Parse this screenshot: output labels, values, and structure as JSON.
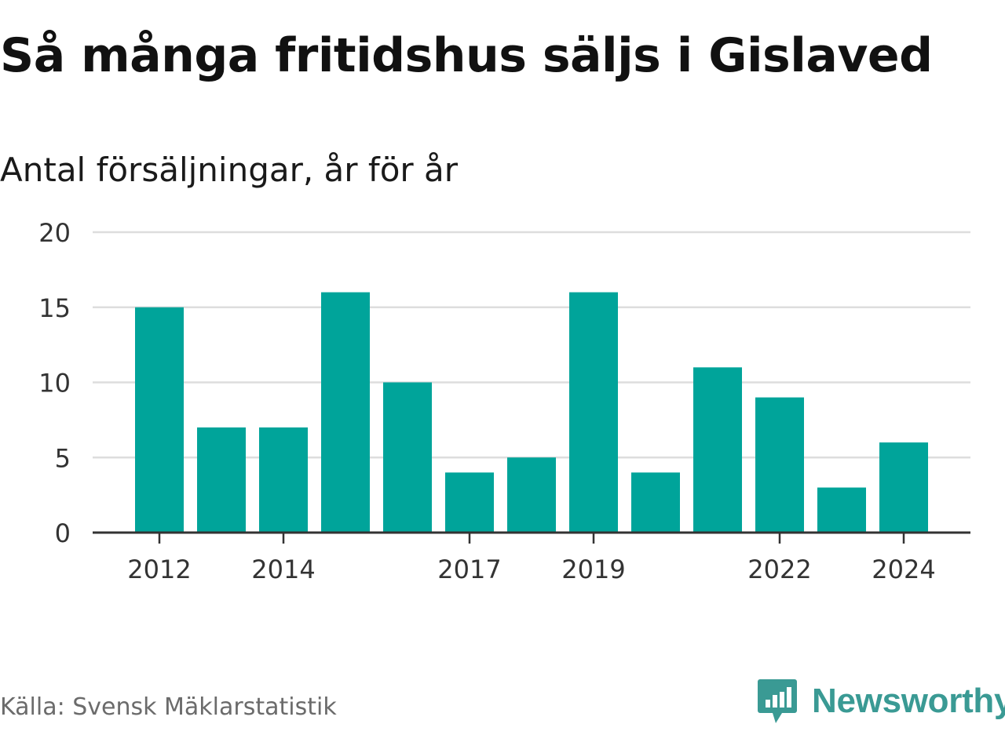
{
  "header": {
    "title": "Så många fritidshus säljs i Gislaved",
    "subtitle": "Antal försäljningar, år för år"
  },
  "footer": {
    "source": "Källa: Svensk Mäklarstatistik",
    "brand": "Newsworthy"
  },
  "colors": {
    "bar": "#00a49a",
    "grid": "#dddddd",
    "axis": "#333333",
    "brand": "#3a9a94"
  },
  "icons": {
    "brand_logo": "bar-chart-speech-bubble-icon"
  },
  "chart_data": {
    "type": "bar",
    "categories": [
      "2012",
      "2013",
      "2014",
      "2015",
      "2016",
      "2017",
      "2018",
      "2019",
      "2020",
      "2021",
      "2022",
      "2023",
      "2024"
    ],
    "values": [
      15,
      7,
      7,
      16,
      10,
      4,
      5,
      16,
      4,
      11,
      9,
      3,
      6
    ],
    "x_tick_labels": [
      "2012",
      "2014",
      "2017",
      "2019",
      "2022",
      "2024"
    ],
    "y_ticks": [
      "0",
      "5",
      "10",
      "15",
      "20"
    ],
    "ylim": [
      0,
      20
    ],
    "xlabel": "",
    "ylabel": "",
    "grid": true,
    "legend": "none"
  }
}
